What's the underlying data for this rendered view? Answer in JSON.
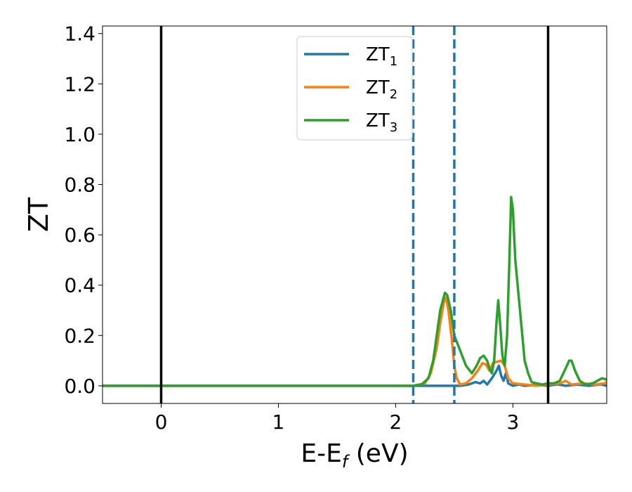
{
  "chart_data": {
    "type": "line",
    "xlabel": {
      "main": "E-E",
      "sub": "f",
      "suffix": " (eV)"
    },
    "ylabel": "ZT",
    "xlim": [
      -0.5,
      3.8
    ],
    "ylim": [
      -0.07,
      1.43
    ],
    "xticks": [
      0,
      1,
      2,
      3
    ],
    "yticks": [
      0.0,
      0.2,
      0.4,
      0.6,
      0.8,
      1.0,
      1.2,
      1.4
    ],
    "ytick_labels": [
      "0.0",
      "0.2",
      "0.4",
      "0.6",
      "0.8",
      "1.0",
      "1.2",
      "1.4"
    ],
    "grid": false,
    "legend": {
      "position": "upper-center"
    },
    "vlines": [
      {
        "x": 0.0,
        "style": "solid",
        "color": "#000000"
      },
      {
        "x": 2.15,
        "style": "dashed",
        "color": "#1f77b4"
      },
      {
        "x": 2.5,
        "style": "dashed",
        "color": "#1f77b4"
      },
      {
        "x": 3.3,
        "style": "solid",
        "color": "#000000"
      }
    ],
    "series": [
      {
        "name": "ZT",
        "name_sub": "1",
        "color": "#1f77b4",
        "points": [
          [
            -0.5,
            0
          ],
          [
            2.55,
            0
          ],
          [
            2.62,
            0.005
          ],
          [
            2.68,
            0.015
          ],
          [
            2.72,
            0.01
          ],
          [
            2.75,
            0.02
          ],
          [
            2.78,
            0.005
          ],
          [
            2.82,
            0.03
          ],
          [
            2.86,
            0.06
          ],
          [
            2.88,
            0.08
          ],
          [
            2.9,
            0.04
          ],
          [
            2.92,
            0.02
          ],
          [
            2.94,
            0.05
          ],
          [
            2.96,
            0.01
          ],
          [
            3.0,
            0
          ],
          [
            3.05,
            0.005
          ],
          [
            3.1,
            0
          ],
          [
            3.2,
            0.004
          ],
          [
            3.3,
            0
          ],
          [
            3.38,
            0.006
          ],
          [
            3.45,
            0
          ],
          [
            3.55,
            0.005
          ],
          [
            3.65,
            0
          ],
          [
            3.75,
            0.006
          ],
          [
            3.8,
            0
          ]
        ]
      },
      {
        "name": "ZT",
        "name_sub": "2",
        "color": "#ff7f0e",
        "points": [
          [
            -0.5,
            0
          ],
          [
            2.15,
            0
          ],
          [
            2.25,
            0.01
          ],
          [
            2.3,
            0.05
          ],
          [
            2.35,
            0.15
          ],
          [
            2.38,
            0.25
          ],
          [
            2.41,
            0.33
          ],
          [
            2.43,
            0.35
          ],
          [
            2.45,
            0.3
          ],
          [
            2.48,
            0.18
          ],
          [
            2.5,
            0.08
          ],
          [
            2.52,
            0.03
          ],
          [
            2.55,
            0.005
          ],
          [
            2.6,
            0.01
          ],
          [
            2.65,
            0.03
          ],
          [
            2.7,
            0.06
          ],
          [
            2.74,
            0.09
          ],
          [
            2.77,
            0.085
          ],
          [
            2.8,
            0.06
          ],
          [
            2.83,
            0.09
          ],
          [
            2.86,
            0.095
          ],
          [
            2.9,
            0.1
          ],
          [
            2.93,
            0.08
          ],
          [
            2.96,
            0.03
          ],
          [
            3.0,
            0.01
          ],
          [
            3.1,
            0.005
          ],
          [
            3.2,
            0
          ],
          [
            3.3,
            0.005
          ],
          [
            3.4,
            0.01
          ],
          [
            3.45,
            0.02
          ],
          [
            3.5,
            0.005
          ],
          [
            3.6,
            0.01
          ],
          [
            3.7,
            0.005
          ],
          [
            3.78,
            0.01
          ],
          [
            3.8,
            0.015
          ]
        ]
      },
      {
        "name": "ZT",
        "name_sub": "3",
        "color": "#2ca02c",
        "points": [
          [
            -0.5,
            0
          ],
          [
            2.15,
            0
          ],
          [
            2.22,
            0.005
          ],
          [
            2.28,
            0.03
          ],
          [
            2.32,
            0.1
          ],
          [
            2.35,
            0.2
          ],
          [
            2.38,
            0.3
          ],
          [
            2.42,
            0.37
          ],
          [
            2.44,
            0.36
          ],
          [
            2.47,
            0.3
          ],
          [
            2.5,
            0.2
          ],
          [
            2.55,
            0.14
          ],
          [
            2.6,
            0.08
          ],
          [
            2.65,
            0.05
          ],
          [
            2.69,
            0.08
          ],
          [
            2.72,
            0.11
          ],
          [
            2.75,
            0.12
          ],
          [
            2.78,
            0.1
          ],
          [
            2.8,
            0.07
          ],
          [
            2.82,
            0.05
          ],
          [
            2.84,
            0.1
          ],
          [
            2.86,
            0.25
          ],
          [
            2.875,
            0.34
          ],
          [
            2.89,
            0.25
          ],
          [
            2.91,
            0.12
          ],
          [
            2.93,
            0.08
          ],
          [
            2.95,
            0.2
          ],
          [
            2.97,
            0.5
          ],
          [
            2.985,
            0.75
          ],
          [
            3.0,
            0.7
          ],
          [
            3.02,
            0.5
          ],
          [
            3.05,
            0.35
          ],
          [
            3.08,
            0.2
          ],
          [
            3.1,
            0.1
          ],
          [
            3.13,
            0.05
          ],
          [
            3.16,
            0.015
          ],
          [
            3.2,
            0.01
          ],
          [
            3.25,
            0.005
          ],
          [
            3.3,
            0.01
          ],
          [
            3.35,
            0.01
          ],
          [
            3.4,
            0.02
          ],
          [
            3.45,
            0.07
          ],
          [
            3.48,
            0.1
          ],
          [
            3.5,
            0.1
          ],
          [
            3.53,
            0.06
          ],
          [
            3.57,
            0.02
          ],
          [
            3.62,
            0.005
          ],
          [
            3.68,
            0.01
          ],
          [
            3.72,
            0.02
          ],
          [
            3.76,
            0.03
          ],
          [
            3.8,
            0.025
          ]
        ]
      }
    ]
  }
}
